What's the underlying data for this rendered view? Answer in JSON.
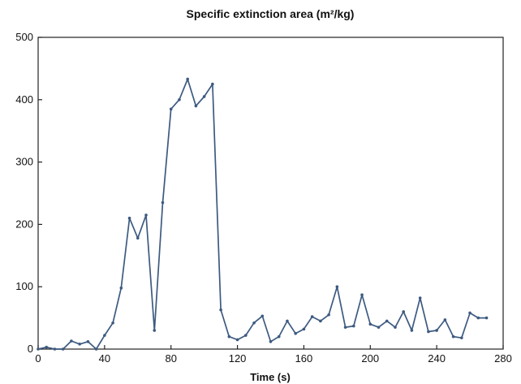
{
  "chart_data": {
    "type": "line",
    "title": "Specific extinction area (m²/kg)",
    "xlabel": "Time (s)",
    "ylabel": "",
    "xlim": [
      0,
      280
    ],
    "ylim": [
      0,
      500
    ],
    "x_ticks": [
      0,
      40,
      80,
      120,
      160,
      200,
      240,
      280
    ],
    "y_ticks": [
      0,
      100,
      200,
      300,
      400,
      500
    ],
    "grid": false,
    "series_color": "#3d5a80",
    "series": [
      {
        "x": [
          0,
          5,
          10,
          15,
          20,
          25,
          30,
          35,
          40,
          45,
          50,
          55,
          60,
          65,
          70,
          75,
          80,
          85,
          90,
          95,
          100,
          105,
          110,
          115,
          120,
          125,
          130,
          135,
          140,
          145,
          150,
          155,
          160,
          165,
          170,
          175,
          180,
          185,
          190,
          195,
          200,
          205,
          210,
          215,
          220,
          225,
          230,
          235,
          240,
          245,
          250,
          255,
          260,
          265,
          270
        ],
        "y": [
          0,
          3,
          0,
          0,
          13,
          8,
          12,
          0,
          22,
          42,
          98,
          210,
          178,
          215,
          30,
          235,
          385,
          400,
          433,
          390,
          405,
          425,
          63,
          20,
          15,
          22,
          42,
          53,
          12,
          20,
          45,
          25,
          32,
          52,
          45,
          55,
          100,
          35,
          37,
          87,
          40,
          35,
          45,
          35,
          60,
          30,
          82,
          28,
          30,
          47,
          20,
          18,
          58,
          50,
          50
        ]
      }
    ]
  }
}
